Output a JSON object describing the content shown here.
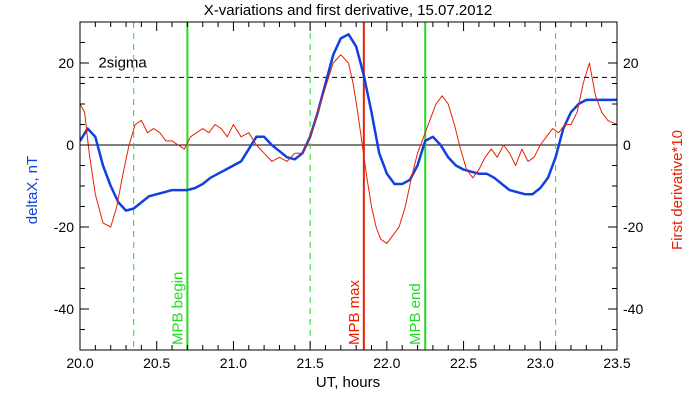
{
  "chart_data": {
    "type": "line",
    "title": "X-variations and first derivative, 15.07.2012",
    "xlabel": "UT, hours",
    "ylabel": "deltaX, nT",
    "ylabel_right": "First derivative*10",
    "xlim": [
      20.0,
      23.5
    ],
    "ylim": [
      -50,
      30
    ],
    "xticks": [
      20.0,
      20.5,
      21.0,
      21.5,
      22.0,
      22.5,
      23.0,
      23.5
    ],
    "xtick_labels": [
      "20.0",
      "20.5",
      "21.0",
      "21.5",
      "22.0",
      "22.5",
      "23.0",
      "23.5"
    ],
    "yticks": [
      20,
      0,
      -20,
      -40
    ],
    "ytick_labels": [
      "20",
      "0",
      "-20",
      "-40"
    ],
    "grid": false,
    "colors": {
      "deltaX": "#1040e0",
      "derivative": "#e82000",
      "mpb_begin_end": "#22dd22",
      "mpb_max": "#e82000",
      "threshold": "#000000"
    },
    "series": [
      {
        "name": "deltaX, nT",
        "x": [
          20.0,
          20.05,
          20.1,
          20.15,
          20.2,
          20.25,
          20.3,
          20.35,
          20.4,
          20.45,
          20.5,
          20.55,
          20.6,
          20.65,
          20.7,
          20.75,
          20.8,
          20.85,
          20.9,
          20.95,
          21.0,
          21.05,
          21.1,
          21.15,
          21.2,
          21.25,
          21.3,
          21.35,
          21.4,
          21.45,
          21.5,
          21.55,
          21.6,
          21.65,
          21.7,
          21.75,
          21.8,
          21.85,
          21.9,
          21.95,
          22.0,
          22.05,
          22.1,
          22.15,
          22.2,
          22.25,
          22.3,
          22.35,
          22.4,
          22.45,
          22.5,
          22.55,
          22.6,
          22.65,
          22.7,
          22.75,
          22.8,
          22.85,
          22.9,
          22.95,
          23.0,
          23.05,
          23.1,
          23.15,
          23.2,
          23.25,
          23.3,
          23.35,
          23.4,
          23.45,
          23.5
        ],
        "y": [
          1,
          4,
          2,
          -5,
          -10,
          -14,
          -16,
          -15.5,
          -14,
          -12.5,
          -12,
          -11.5,
          -11,
          -11,
          -11,
          -10.5,
          -9.5,
          -8,
          -7,
          -6,
          -5,
          -4,
          -1,
          2,
          2,
          0,
          -1.5,
          -3,
          -3.5,
          -2,
          2,
          8,
          15,
          22,
          26,
          27,
          24,
          17,
          8,
          -2,
          -7,
          -9.5,
          -9.5,
          -8.5,
          -5,
          1,
          2,
          0,
          -3,
          -5,
          -6,
          -6.5,
          -7,
          -7,
          -8,
          -9.5,
          -11,
          -11.5,
          -12,
          -12,
          -10.5,
          -8,
          -3,
          4,
          8,
          10,
          11,
          11,
          11,
          11,
          11
        ]
      },
      {
        "name": "First derivative*10",
        "x": [
          20.0,
          20.03,
          20.06,
          20.1,
          20.15,
          20.2,
          20.24,
          20.28,
          20.32,
          20.36,
          20.4,
          20.44,
          20.48,
          20.52,
          20.56,
          20.6,
          20.64,
          20.68,
          20.72,
          20.76,
          20.8,
          20.84,
          20.88,
          20.92,
          20.96,
          21.0,
          21.05,
          21.1,
          21.15,
          21.2,
          21.25,
          21.3,
          21.35,
          21.4,
          21.45,
          21.5,
          21.55,
          21.6,
          21.65,
          21.7,
          21.75,
          21.78,
          21.81,
          21.84,
          21.87,
          21.9,
          21.93,
          21.96,
          22.0,
          22.04,
          22.08,
          22.12,
          22.16,
          22.2,
          22.24,
          22.28,
          22.32,
          22.36,
          22.4,
          22.44,
          22.48,
          22.52,
          22.56,
          22.6,
          22.64,
          22.68,
          22.72,
          22.76,
          22.8,
          22.84,
          22.88,
          22.92,
          22.96,
          23.0,
          23.04,
          23.08,
          23.12,
          23.16,
          23.2,
          23.24,
          23.28,
          23.32,
          23.36,
          23.4,
          23.44,
          23.5
        ],
        "y": [
          10,
          8,
          -2,
          -12,
          -19,
          -20,
          -15,
          -7,
          0,
          5,
          6,
          3,
          4,
          3,
          1,
          1,
          0,
          -1,
          2,
          3,
          4,
          3,
          5,
          4,
          2,
          5,
          2,
          3,
          0,
          -2,
          -4,
          -3,
          -4,
          -2,
          -2,
          2,
          8,
          14,
          20,
          22,
          20,
          15,
          8,
          0,
          -8,
          -15,
          -20,
          -23,
          -24,
          -22,
          -20,
          -15,
          -8,
          -2,
          2,
          6,
          10,
          12,
          10,
          5,
          -1,
          -6,
          -8,
          -6,
          -3,
          -1,
          -3,
          0,
          -2,
          -5,
          -1,
          -4,
          -3,
          0,
          2,
          4,
          3,
          5,
          5,
          8,
          15,
          20,
          12,
          8,
          6,
          5
        ]
      }
    ],
    "threshold": {
      "label": "2sigma",
      "y": 16.5
    },
    "zero_line": 0,
    "vertical_lines": [
      {
        "x": 20.35,
        "style": "dashed",
        "color": "#22dd22",
        "label": ""
      },
      {
        "x": 20.7,
        "style": "solid",
        "color": "#22dd22",
        "label": "MPB begin"
      },
      {
        "x": 21.5,
        "style": "dashed",
        "color": "#22dd22",
        "label": ""
      },
      {
        "x": 21.85,
        "style": "solid",
        "color": "#e82000",
        "label": "MPB max"
      },
      {
        "x": 22.25,
        "style": "solid",
        "color": "#22dd22",
        "label": "MPB end"
      },
      {
        "x": 23.1,
        "style": "dashed",
        "color": "#22dd22",
        "label": ""
      }
    ]
  }
}
